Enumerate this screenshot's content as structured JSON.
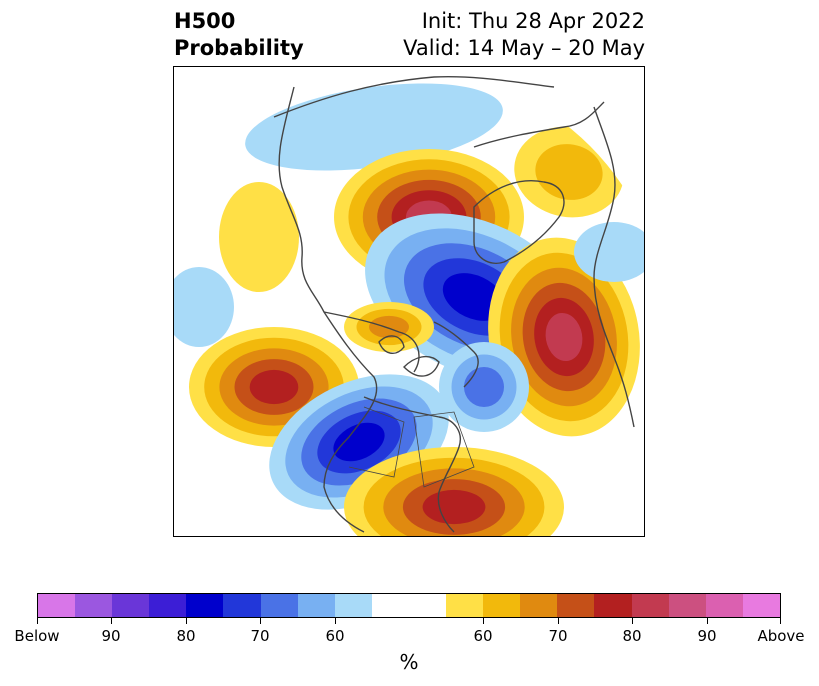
{
  "title": {
    "left_line1": "H500",
    "left_line2": "Probability",
    "right_line1": "Init: Thu 28 Apr 2022",
    "right_line2": "Valid: 14 May – 20 May"
  },
  "colorbar": {
    "unit": "%",
    "colors": [
      "#d876e8",
      "#9b57e0",
      "#6a36d8",
      "#3c1ed6",
      "#0000cc",
      "#2237d9",
      "#4a72e6",
      "#78b0f2",
      "#a8daf8",
      "#ffffff",
      "#ffffff",
      "#ffe046",
      "#f2b90c",
      "#e08a10",
      "#c55018",
      "#b32020",
      "#c23a50",
      "#cc5080",
      "#db60b0",
      "#e87ae0"
    ],
    "tick_labels": [
      "Below",
      "90",
      "80",
      "70",
      "60",
      "60",
      "70",
      "80",
      "90",
      "Above"
    ]
  },
  "map_palette": {
    "blue_60": "#a8daf8",
    "blue_65": "#78b0f2",
    "blue_70": "#4a72e6",
    "blue_75": "#2237d9",
    "blue_80": "#0000cc",
    "orange_60": "#ffe046",
    "orange_65": "#f2b90c",
    "orange_70": "#e08a10",
    "orange_75": "#c55018",
    "orange_80": "#b32020",
    "orange_85": "#c23a50"
  }
}
